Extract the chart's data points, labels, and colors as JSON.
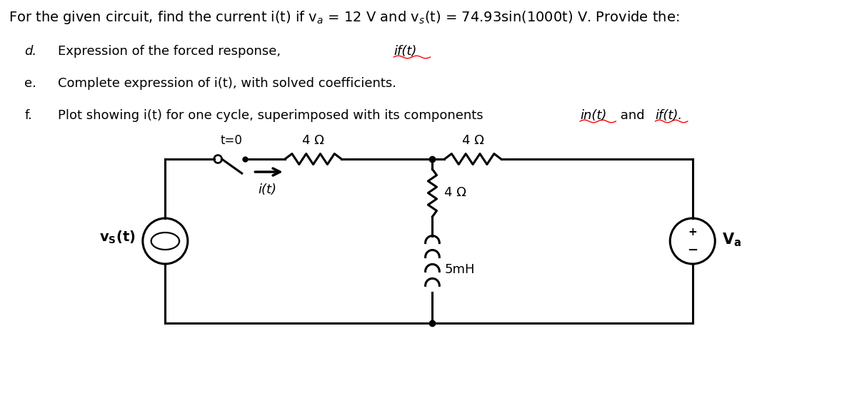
{
  "bg_color": "#ffffff",
  "text_color": "#000000",
  "circuit_color": "#000000",
  "label_4ohm": "4 Ω",
  "label_5mH": "5mH",
  "label_t0": "t=0",
  "label_it": "i(t)",
  "font_size_title": 14,
  "font_size_body": 13,
  "font_size_circuit": 12
}
